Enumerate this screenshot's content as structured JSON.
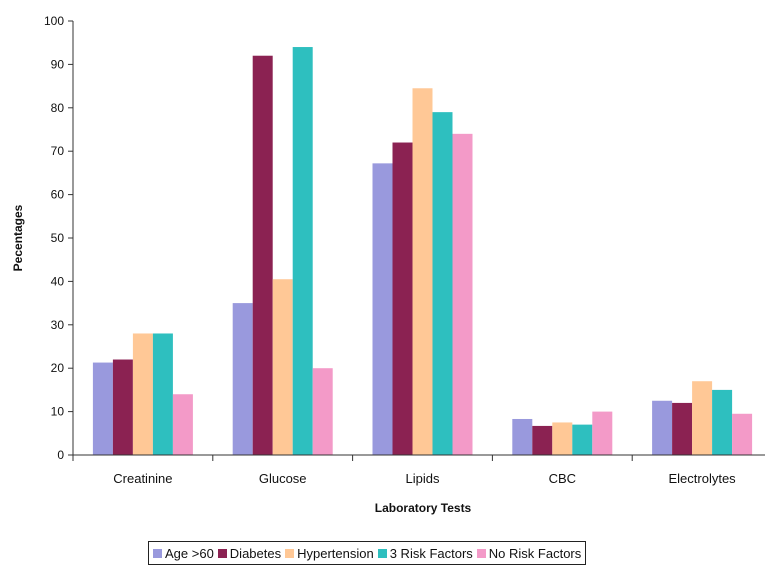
{
  "chart_data": {
    "type": "bar",
    "categories": [
      "Creatinine",
      "Glucose",
      "Lipids",
      "CBC",
      "Electrolytes"
    ],
    "series": [
      {
        "name": "Age >60",
        "color": "#9999dd",
        "values": [
          21.3,
          35,
          67.2,
          8.3,
          12.5
        ]
      },
      {
        "name": "Diabetes",
        "color": "#8b2252",
        "values": [
          22,
          92,
          72,
          6.7,
          12
        ]
      },
      {
        "name": "Hypertension",
        "color": "#ffc896",
        "values": [
          28,
          40.5,
          84.5,
          7.5,
          17
        ]
      },
      {
        "name": "3 Risk Factors",
        "color": "#2ebfbf",
        "values": [
          28,
          94,
          79,
          7,
          15
        ]
      },
      {
        "name": "No Risk Factors",
        "color": "#f39ac8",
        "values": [
          14,
          20,
          74,
          10,
          9.5
        ]
      }
    ],
    "xlabel": "Laboratory Tests",
    "ylabel": "Pecentages",
    "ylim": [
      0,
      100
    ],
    "yticks": [
      0,
      10,
      20,
      30,
      40,
      50,
      60,
      70,
      80,
      90,
      100
    ],
    "grid": false,
    "legend_position": "bottom"
  }
}
